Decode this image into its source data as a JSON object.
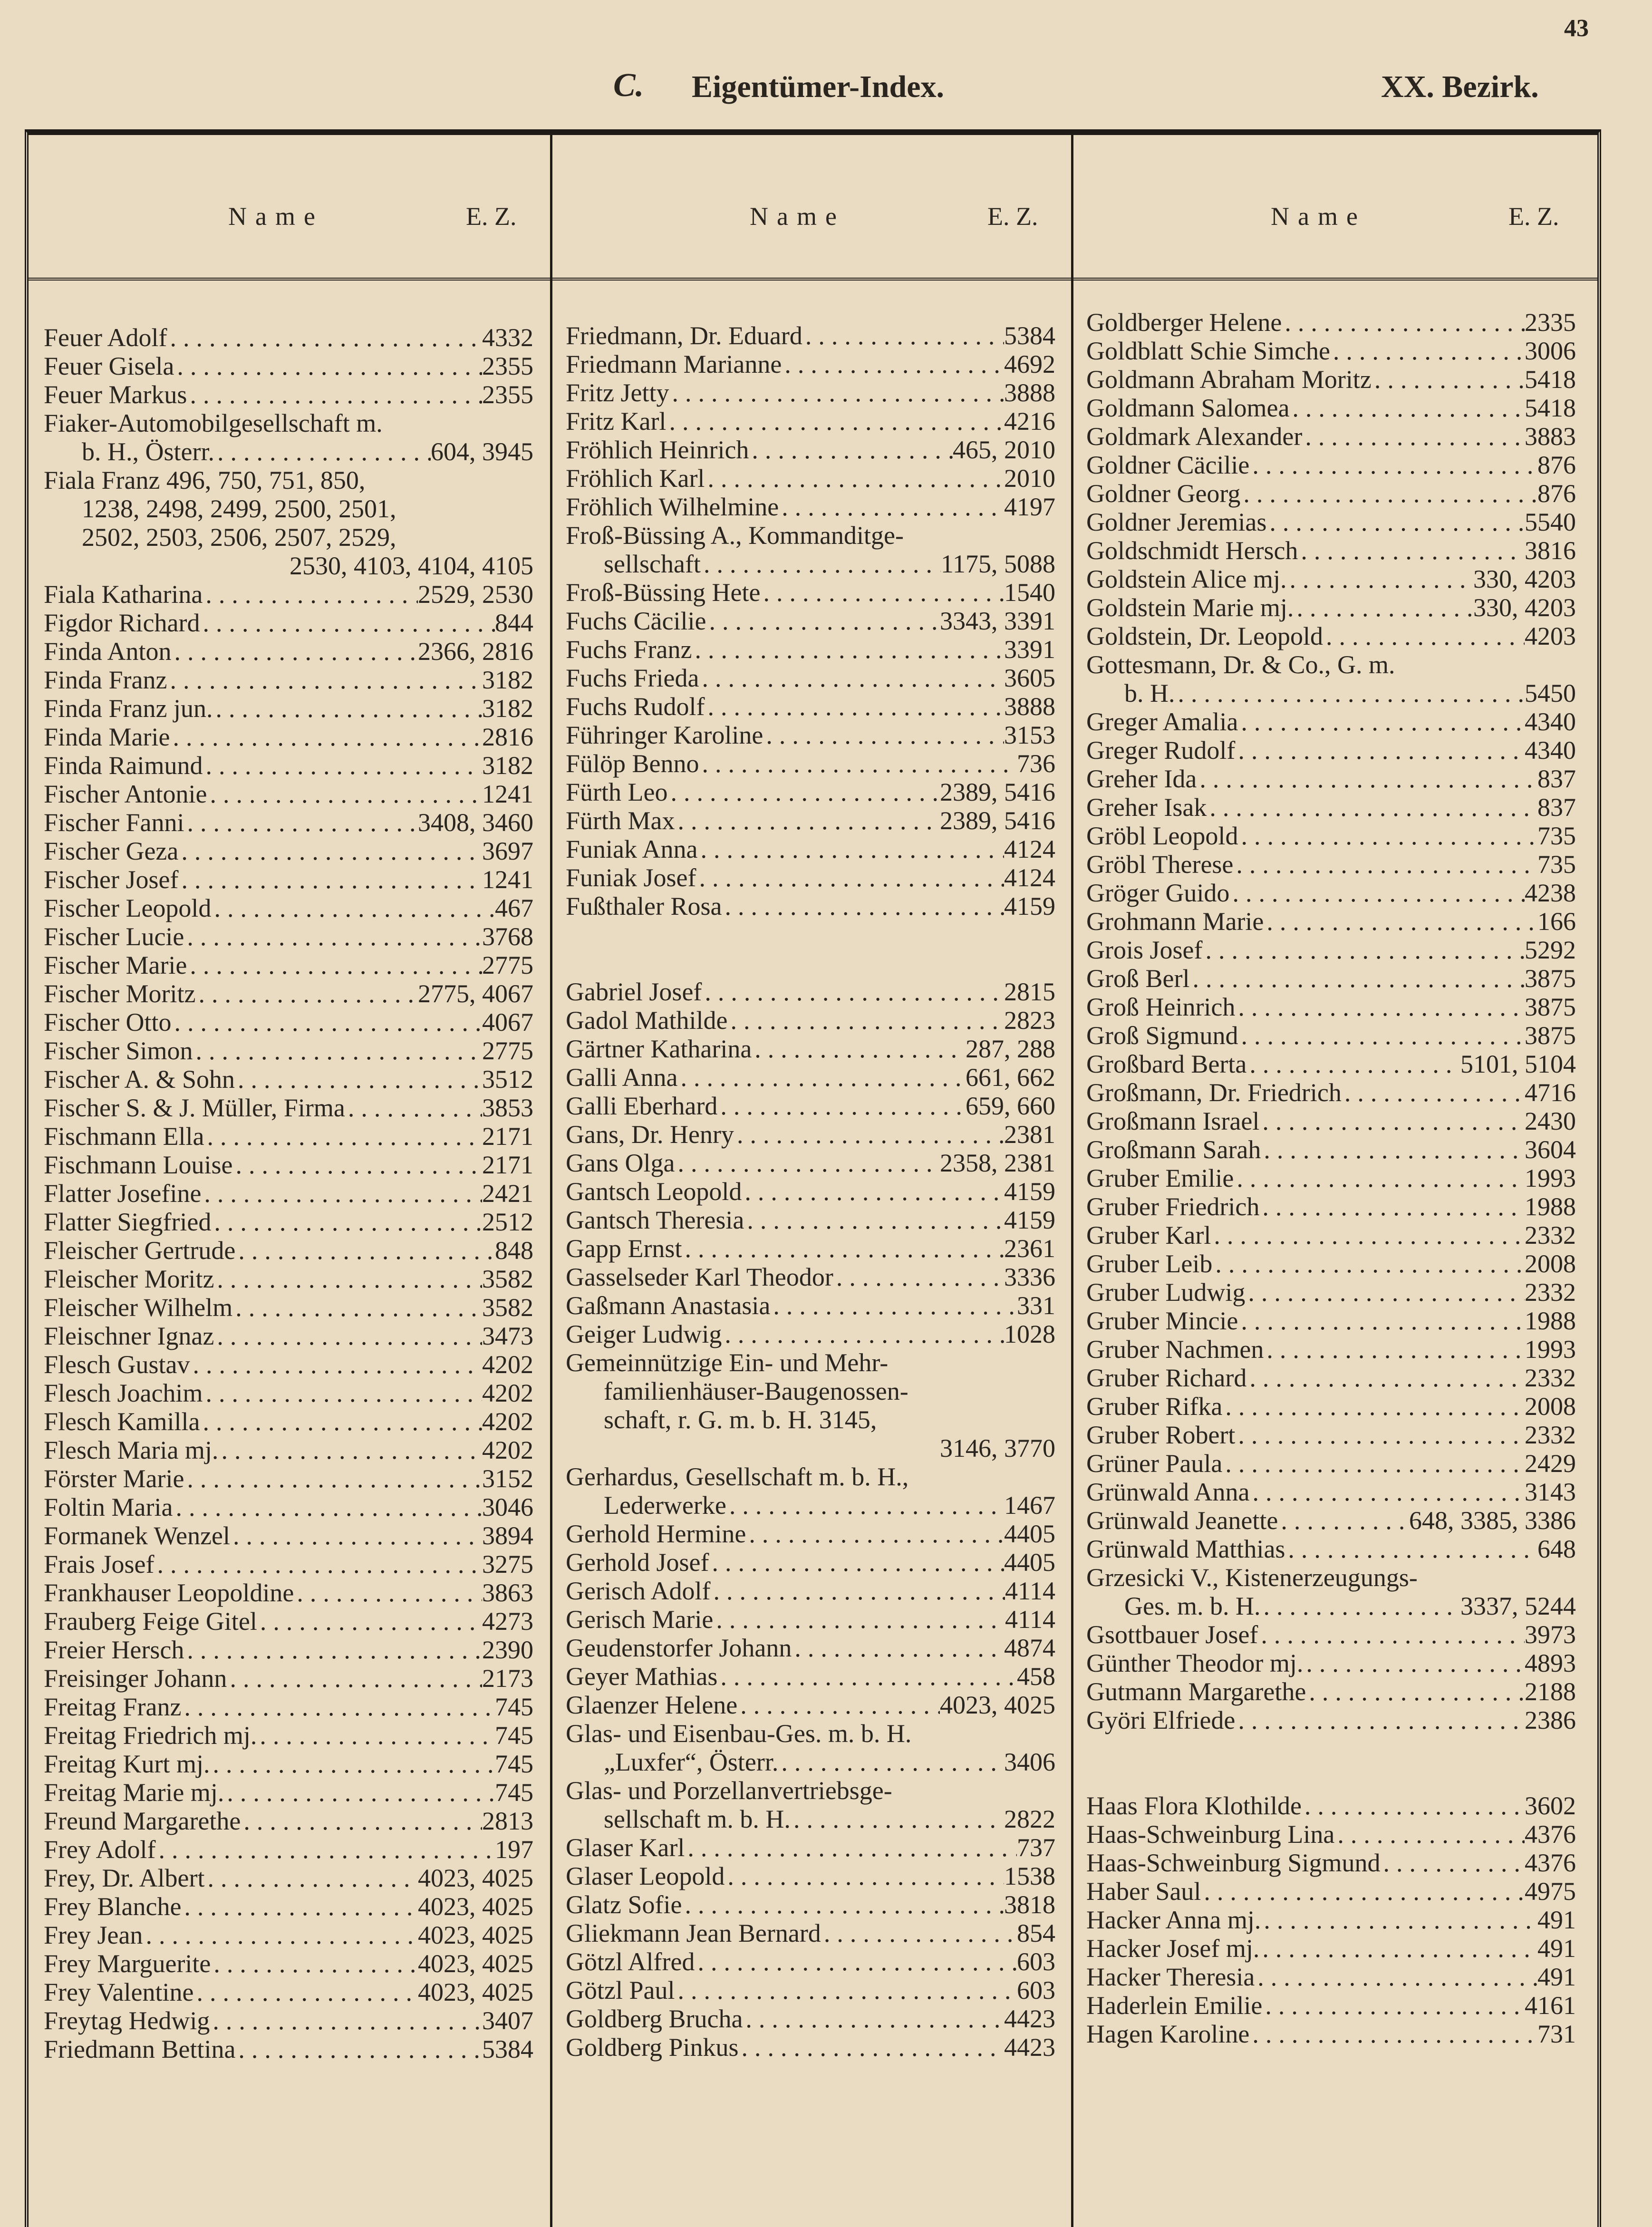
{
  "page_number": "43",
  "header": {
    "section_letter": "C.",
    "title": "Eigentümer-Index.",
    "district": "XX. Bezirk."
  },
  "columns_header": {
    "name": "Name",
    "ez": "E. Z."
  },
  "columns": [
    [
      {
        "n": "Feuer Adolf",
        "z": "4332"
      },
      {
        "n": "Feuer Gisela",
        "z": "2355"
      },
      {
        "n": "Feuer Markus",
        "z": "2355"
      },
      {
        "n": "Fiaker-Automobilgesellschaft m.",
        "z": ""
      },
      {
        "n": "b. H., Österr.",
        "z": "604, 3945",
        "indent": true
      },
      {
        "n": "Fiala Franz 496, 750, 751, 850,",
        "z": ""
      },
      {
        "n": "1238, 2498, 2499, 2500, 2501,",
        "z": "",
        "indent": true
      },
      {
        "n": "2502, 2503, 2506, 2507, 2529,",
        "z": "",
        "indent": true
      },
      {
        "n": "",
        "z": "2530, 4103, 4104, 4105"
      },
      {
        "n": "Fiala Katharina",
        "z": "2529, 2530"
      },
      {
        "n": "Figdor Richard",
        "z": "844"
      },
      {
        "n": "Finda Anton",
        "z": "2366, 2816"
      },
      {
        "n": "Finda Franz",
        "z": "3182"
      },
      {
        "n": "Finda Franz jun.",
        "z": "3182"
      },
      {
        "n": "Finda Marie",
        "z": "2816"
      },
      {
        "n": "Finda Raimund",
        "z": "3182"
      },
      {
        "n": "Fischer Antonie",
        "z": "1241"
      },
      {
        "n": "Fischer Fanni",
        "z": "3408, 3460"
      },
      {
        "n": "Fischer Geza",
        "z": "3697"
      },
      {
        "n": "Fischer Josef",
        "z": "1241"
      },
      {
        "n": "Fischer Leopold",
        "z": "467"
      },
      {
        "n": "Fischer Lucie",
        "z": "3768"
      },
      {
        "n": "Fischer Marie",
        "z": "2775"
      },
      {
        "n": "Fischer Moritz",
        "z": "2775, 4067"
      },
      {
        "n": "Fischer Otto",
        "z": "4067"
      },
      {
        "n": "Fischer Simon",
        "z": "2775"
      },
      {
        "n": "Fischer A. & Sohn",
        "z": "3512"
      },
      {
        "n": "Fischer S. & J. Müller, Firma",
        "z": "3853"
      },
      {
        "n": "Fischmann Ella",
        "z": "2171"
      },
      {
        "n": "Fischmann Louise",
        "z": "2171"
      },
      {
        "n": "Flatter Josefine",
        "z": "2421"
      },
      {
        "n": "Flatter Siegfried",
        "z": "2512"
      },
      {
        "n": "Fleischer Gertrude",
        "z": "848"
      },
      {
        "n": "Fleischer Moritz",
        "z": "3582"
      },
      {
        "n": "Fleischer Wilhelm",
        "z": "3582"
      },
      {
        "n": "Fleischner Ignaz",
        "z": "3473"
      },
      {
        "n": "Flesch Gustav",
        "z": "4202"
      },
      {
        "n": "Flesch Joachim",
        "z": "4202"
      },
      {
        "n": "Flesch Kamilla",
        "z": "4202"
      },
      {
        "n": "Flesch Maria mj.",
        "z": "4202"
      },
      {
        "n": "Förster Marie",
        "z": "3152"
      },
      {
        "n": "Foltin Maria",
        "z": "3046"
      },
      {
        "n": "Formanek Wenzel",
        "z": "3894"
      },
      {
        "n": "Frais Josef",
        "z": "3275"
      },
      {
        "n": "Frankhauser Leopoldine",
        "z": "3863"
      },
      {
        "n": "Frauberg Feige Gitel",
        "z": "4273"
      },
      {
        "n": "Freier Hersch",
        "z": "2390"
      },
      {
        "n": "Freisinger Johann",
        "z": "2173"
      },
      {
        "n": "Freitag Franz",
        "z": "745"
      },
      {
        "n": "Freitag Friedrich mj.",
        "z": "745"
      },
      {
        "n": "Freitag Kurt mj.",
        "z": "745"
      },
      {
        "n": "Freitag Marie mj.",
        "z": "745"
      },
      {
        "n": "Freund Margarethe",
        "z": "2813"
      },
      {
        "n": "Frey Adolf",
        "z": "197"
      },
      {
        "n": "Frey, Dr. Albert",
        "z": "4023, 4025"
      },
      {
        "n": "Frey Blanche",
        "z": "4023, 4025"
      },
      {
        "n": "Frey Jean",
        "z": "4023, 4025"
      },
      {
        "n": "Frey Marguerite",
        "z": "4023, 4025"
      },
      {
        "n": "Frey Valentine",
        "z": "4023, 4025"
      },
      {
        "n": "Freytag Hedwig",
        "z": "3407"
      },
      {
        "n": "Friedmann Bettina",
        "z": "5384"
      }
    ],
    [
      {
        "n": "Friedmann, Dr. Eduard",
        "z": "5384"
      },
      {
        "n": "Friedmann Marianne",
        "z": "4692"
      },
      {
        "n": "Fritz Jetty",
        "z": "3888"
      },
      {
        "n": "Fritz Karl",
        "z": "4216"
      },
      {
        "n": "Fröhlich Heinrich",
        "z": "465, 2010"
      },
      {
        "n": "Fröhlich Karl",
        "z": "2010"
      },
      {
        "n": "Fröhlich Wilhelmine",
        "z": "4197"
      },
      {
        "n": "Froß-Büssing A., Kommanditge-",
        "z": ""
      },
      {
        "n": "sellschaft",
        "z": "1175, 5088",
        "indent": true
      },
      {
        "n": "Froß-Büssing Hete",
        "z": "1540"
      },
      {
        "n": "Fuchs Cäcilie",
        "z": "3343, 3391"
      },
      {
        "n": "Fuchs Franz",
        "z": "3391"
      },
      {
        "n": "Fuchs Frieda",
        "z": "3605"
      },
      {
        "n": "Fuchs Rudolf",
        "z": "3888"
      },
      {
        "n": "Führinger Karoline",
        "z": "3153"
      },
      {
        "n": "Fülöp Benno",
        "z": "736"
      },
      {
        "n": "Fürth Leo",
        "z": "2389, 5416"
      },
      {
        "n": "Fürth Max",
        "z": "2389, 5416"
      },
      {
        "n": "Funiak Anna",
        "z": "4124"
      },
      {
        "n": "Funiak Josef",
        "z": "4124"
      },
      {
        "n": "Fußthaler Rosa",
        "z": "4159"
      },
      {
        "n": "",
        "z": ""
      },
      {
        "n": "",
        "z": ""
      },
      {
        "n": "Gabriel Josef",
        "z": "2815"
      },
      {
        "n": "Gadol Mathilde",
        "z": "2823"
      },
      {
        "n": "Gärtner Katharina",
        "z": "287, 288"
      },
      {
        "n": "Galli Anna",
        "z": "661, 662"
      },
      {
        "n": "Galli Eberhard",
        "z": "659, 660"
      },
      {
        "n": "Gans, Dr. Henry",
        "z": "2381"
      },
      {
        "n": "Gans Olga",
        "z": "2358, 2381"
      },
      {
        "n": "Gantsch Leopold",
        "z": "4159"
      },
      {
        "n": "Gantsch Theresia",
        "z": "4159"
      },
      {
        "n": "Gapp Ernst",
        "z": "2361"
      },
      {
        "n": "Gasselseder Karl Theodor",
        "z": "3336"
      },
      {
        "n": "Gaßmann Anastasia",
        "z": "331"
      },
      {
        "n": "Geiger Ludwig",
        "z": "1028"
      },
      {
        "n": "Gemeinnützige Ein- und Mehr-",
        "z": ""
      },
      {
        "n": "familienhäuser-Baugenossen-",
        "z": "",
        "indent": true
      },
      {
        "n": "schaft, r. G. m. b. H.      3145,",
        "z": "",
        "indent": true
      },
      {
        "n": "",
        "z": "3146, 3770"
      },
      {
        "n": "Gerhardus, Gesellschaft m. b. H.,",
        "z": ""
      },
      {
        "n": "Lederwerke",
        "z": "1467",
        "indent": true
      },
      {
        "n": "Gerhold Hermine",
        "z": "4405"
      },
      {
        "n": "Gerhold Josef",
        "z": "4405"
      },
      {
        "n": "Gerisch Adolf",
        "z": "4114"
      },
      {
        "n": "Gerisch Marie",
        "z": "4114"
      },
      {
        "n": "Geudenstorfer Johann",
        "z": "4874"
      },
      {
        "n": "Geyer Mathias",
        "z": "458"
      },
      {
        "n": "Glaenzer Helene",
        "z": "4023, 4025"
      },
      {
        "n": "Glas- und Eisenbau-Ges. m. b. H.",
        "z": ""
      },
      {
        "n": "„Luxfer“, Österr.",
        "z": "3406",
        "indent": true
      },
      {
        "n": "Glas- und Porzellanvertriebsge-",
        "z": ""
      },
      {
        "n": "sellschaft m. b. H.",
        "z": "2822",
        "indent": true
      },
      {
        "n": "Glaser Karl",
        "z": "737"
      },
      {
        "n": "Glaser Leopold",
        "z": "1538"
      },
      {
        "n": "Glatz Sofie",
        "z": "3818"
      },
      {
        "n": "Gliekmann Jean Bernard",
        "z": "854"
      },
      {
        "n": "Götzl Alfred",
        "z": "603"
      },
      {
        "n": "Götzl Paul",
        "z": "603"
      },
      {
        "n": "Goldberg Brucha",
        "z": "4423"
      },
      {
        "n": "Goldberg Pinkus",
        "z": "4423"
      }
    ],
    [
      {
        "n": "Goldberger Helene",
        "z": "2335"
      },
      {
        "n": "Goldblatt Schie Simche",
        "z": "3006"
      },
      {
        "n": "Goldmann Abraham Moritz",
        "z": "5418"
      },
      {
        "n": "Goldmann Salomea",
        "z": "5418"
      },
      {
        "n": "Goldmark Alexander",
        "z": "3883"
      },
      {
        "n": "Goldner Cäcilie",
        "z": "876"
      },
      {
        "n": "Goldner Georg",
        "z": "876"
      },
      {
        "n": "Goldner Jeremias",
        "z": "5540"
      },
      {
        "n": "Goldschmidt Hersch",
        "z": "3816"
      },
      {
        "n": "Goldstein Alice mj.",
        "z": "330, 4203"
      },
      {
        "n": "Goldstein Marie mj.",
        "z": "330, 4203"
      },
      {
        "n": "Goldstein, Dr. Leopold",
        "z": "4203"
      },
      {
        "n": "Gottesmann, Dr. & Co., G. m.",
        "z": ""
      },
      {
        "n": "b. H.",
        "z": "5450",
        "indent": true
      },
      {
        "n": "Greger Amalia",
        "z": "4340"
      },
      {
        "n": "Greger Rudolf",
        "z": "4340"
      },
      {
        "n": "Greher Ida",
        "z": "837"
      },
      {
        "n": "Greher Isak",
        "z": "837"
      },
      {
        "n": "Gröbl Leopold",
        "z": "735"
      },
      {
        "n": "Gröbl Therese",
        "z": "735"
      },
      {
        "n": "Gröger Guido",
        "z": "4238"
      },
      {
        "n": "Grohmann Marie",
        "z": "166"
      },
      {
        "n": "Grois Josef",
        "z": "5292"
      },
      {
        "n": "Groß Berl",
        "z": "3875"
      },
      {
        "n": "Groß Heinrich",
        "z": "3875"
      },
      {
        "n": "Groß Sigmund",
        "z": "3875"
      },
      {
        "n": "Großbard Berta",
        "z": "5101, 5104"
      },
      {
        "n": "Großmann, Dr. Friedrich",
        "z": "4716"
      },
      {
        "n": "Großmann Israel",
        "z": "2430"
      },
      {
        "n": "Großmann Sarah",
        "z": "3604"
      },
      {
        "n": "Gruber Emilie",
        "z": "1993"
      },
      {
        "n": "Gruber Friedrich",
        "z": "1988"
      },
      {
        "n": "Gruber Karl",
        "z": "2332"
      },
      {
        "n": "Gruber Leib",
        "z": "2008"
      },
      {
        "n": "Gruber Ludwig",
        "z": "2332"
      },
      {
        "n": "Gruber Mincie",
        "z": "1988"
      },
      {
        "n": "Gruber Nachmen",
        "z": "1993"
      },
      {
        "n": "Gruber Richard",
        "z": "2332"
      },
      {
        "n": "Gruber Rifka",
        "z": "2008"
      },
      {
        "n": "Gruber Robert",
        "z": "2332"
      },
      {
        "n": "Grüner Paula",
        "z": "2429"
      },
      {
        "n": "Grünwald Anna",
        "z": "3143"
      },
      {
        "n": "Grünwald Jeanette",
        "z": "648, 3385, 3386"
      },
      {
        "n": "Grünwald Matthias",
        "z": "648"
      },
      {
        "n": "Grzesicki V., Kistenerzeugungs-",
        "z": ""
      },
      {
        "n": "Ges. m. b. H.",
        "z": "3337, 5244",
        "indent": true
      },
      {
        "n": "Gsottbauer Josef",
        "z": "3973"
      },
      {
        "n": "Günther Theodor mj.",
        "z": "4893"
      },
      {
        "n": "Gutmann Margarethe",
        "z": "2188"
      },
      {
        "n": "Györi Elfriede",
        "z": "2386"
      },
      {
        "n": "",
        "z": ""
      },
      {
        "n": "",
        "z": ""
      },
      {
        "n": "Haas Flora Klothilde",
        "z": "3602"
      },
      {
        "n": "Haas-Schweinburg Lina",
        "z": "4376"
      },
      {
        "n": "Haas-Schweinburg Sigmund",
        "z": "4376"
      },
      {
        "n": "Haber Saul",
        "z": "4975"
      },
      {
        "n": "Hacker Anna mj.",
        "z": "491"
      },
      {
        "n": "Hacker Josef mj.",
        "z": "491"
      },
      {
        "n": "Hacker Theresia",
        "z": "491"
      },
      {
        "n": "Haderlein Emilie",
        "z": "4161"
      },
      {
        "n": "Hagen Karoline",
        "z": "731"
      }
    ]
  ]
}
